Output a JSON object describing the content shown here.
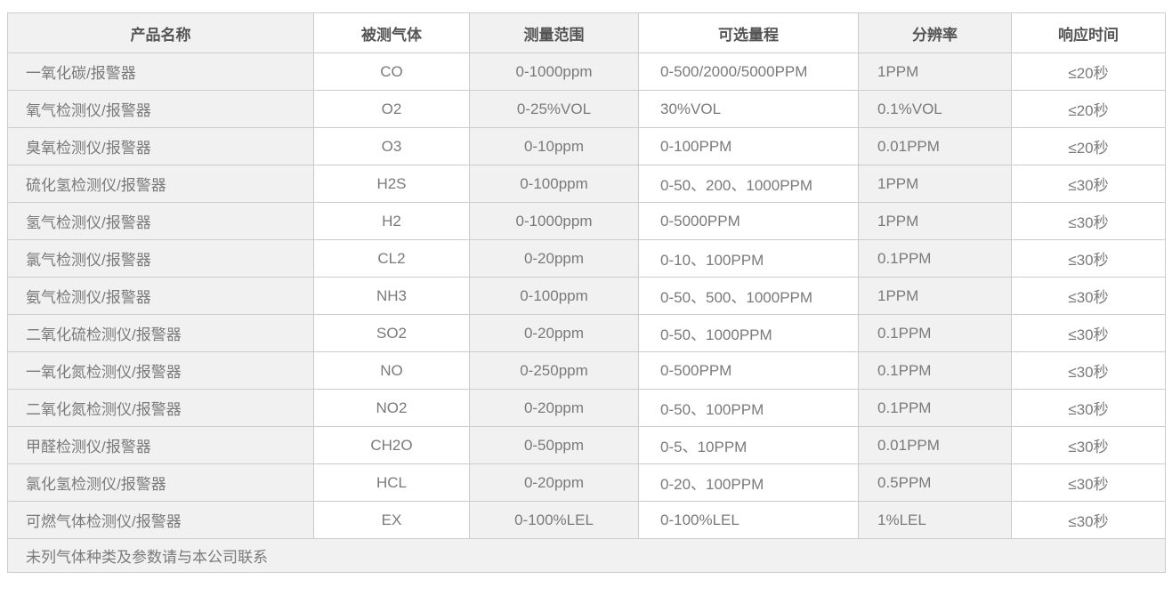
{
  "table": {
    "headers": [
      "产品名称",
      "被测气体",
      "测量范围",
      "可选量程",
      "分辨率",
      "响应时间"
    ],
    "column_keys": [
      "product-name",
      "measured-gas",
      "measure-range",
      "optional-range",
      "resolution",
      "response-time"
    ],
    "rows": [
      [
        "一氧化碳/报警器",
        "CO",
        "0-1000ppm",
        "0-500/2000/5000PPM",
        "1PPM",
        "≤20秒"
      ],
      [
        "氧气检测仪/报警器",
        "O2",
        "0-25%VOL",
        "30%VOL",
        "0.1%VOL",
        "≤20秒"
      ],
      [
        "臭氧检测仪/报警器",
        "O3",
        "0-10ppm",
        "0-100PPM",
        "0.01PPM",
        "≤20秒"
      ],
      [
        "硫化氢检测仪/报警器",
        "H2S",
        "0-100ppm",
        "0-50、200、1000PPM",
        "1PPM",
        "≤30秒"
      ],
      [
        "氢气检测仪/报警器",
        "H2",
        "0-1000ppm",
        "0-5000PPM",
        "1PPM",
        "≤30秒"
      ],
      [
        "氯气检测仪/报警器",
        "CL2",
        "0-20ppm",
        "0-10、100PPM",
        "0.1PPM",
        "≤30秒"
      ],
      [
        "氨气检测仪/报警器",
        "NH3",
        "0-100ppm",
        "0-50、500、1000PPM",
        "1PPM",
        "≤30秒"
      ],
      [
        "二氧化硫检测仪/报警器",
        "SO2",
        "0-20ppm",
        "0-50、1000PPM",
        "0.1PPM",
        "≤30秒"
      ],
      [
        "一氧化氮检测仪/报警器",
        "NO",
        "0-250ppm",
        "0-500PPM",
        "0.1PPM",
        "≤30秒"
      ],
      [
        "二氧化氮检测仪/报警器",
        "NO2",
        "0-20ppm",
        "0-50、100PPM",
        "0.1PPM",
        "≤30秒"
      ],
      [
        "甲醛检测仪/报警器",
        "CH2O",
        "0-50ppm",
        "0-5、10PPM",
        "0.01PPM",
        "≤30秒"
      ],
      [
        "氯化氢检测仪/报警器",
        "HCL",
        "0-20ppm",
        "0-20、100PPM",
        "0.5PPM",
        "≤30秒"
      ],
      [
        "可燃气体检测仪/报警器",
        "EX",
        "0-100%LEL",
        "0-100%LEL",
        "1%LEL",
        "≤30秒"
      ]
    ],
    "footer_note": "未列气体种类及参数请与本公司联系"
  },
  "colors": {
    "stripe_bg": "#f1f1f1",
    "plain_bg": "#ffffff",
    "border": "#cccccc",
    "header_text": "#555555",
    "body_text": "#7a7a7a"
  }
}
